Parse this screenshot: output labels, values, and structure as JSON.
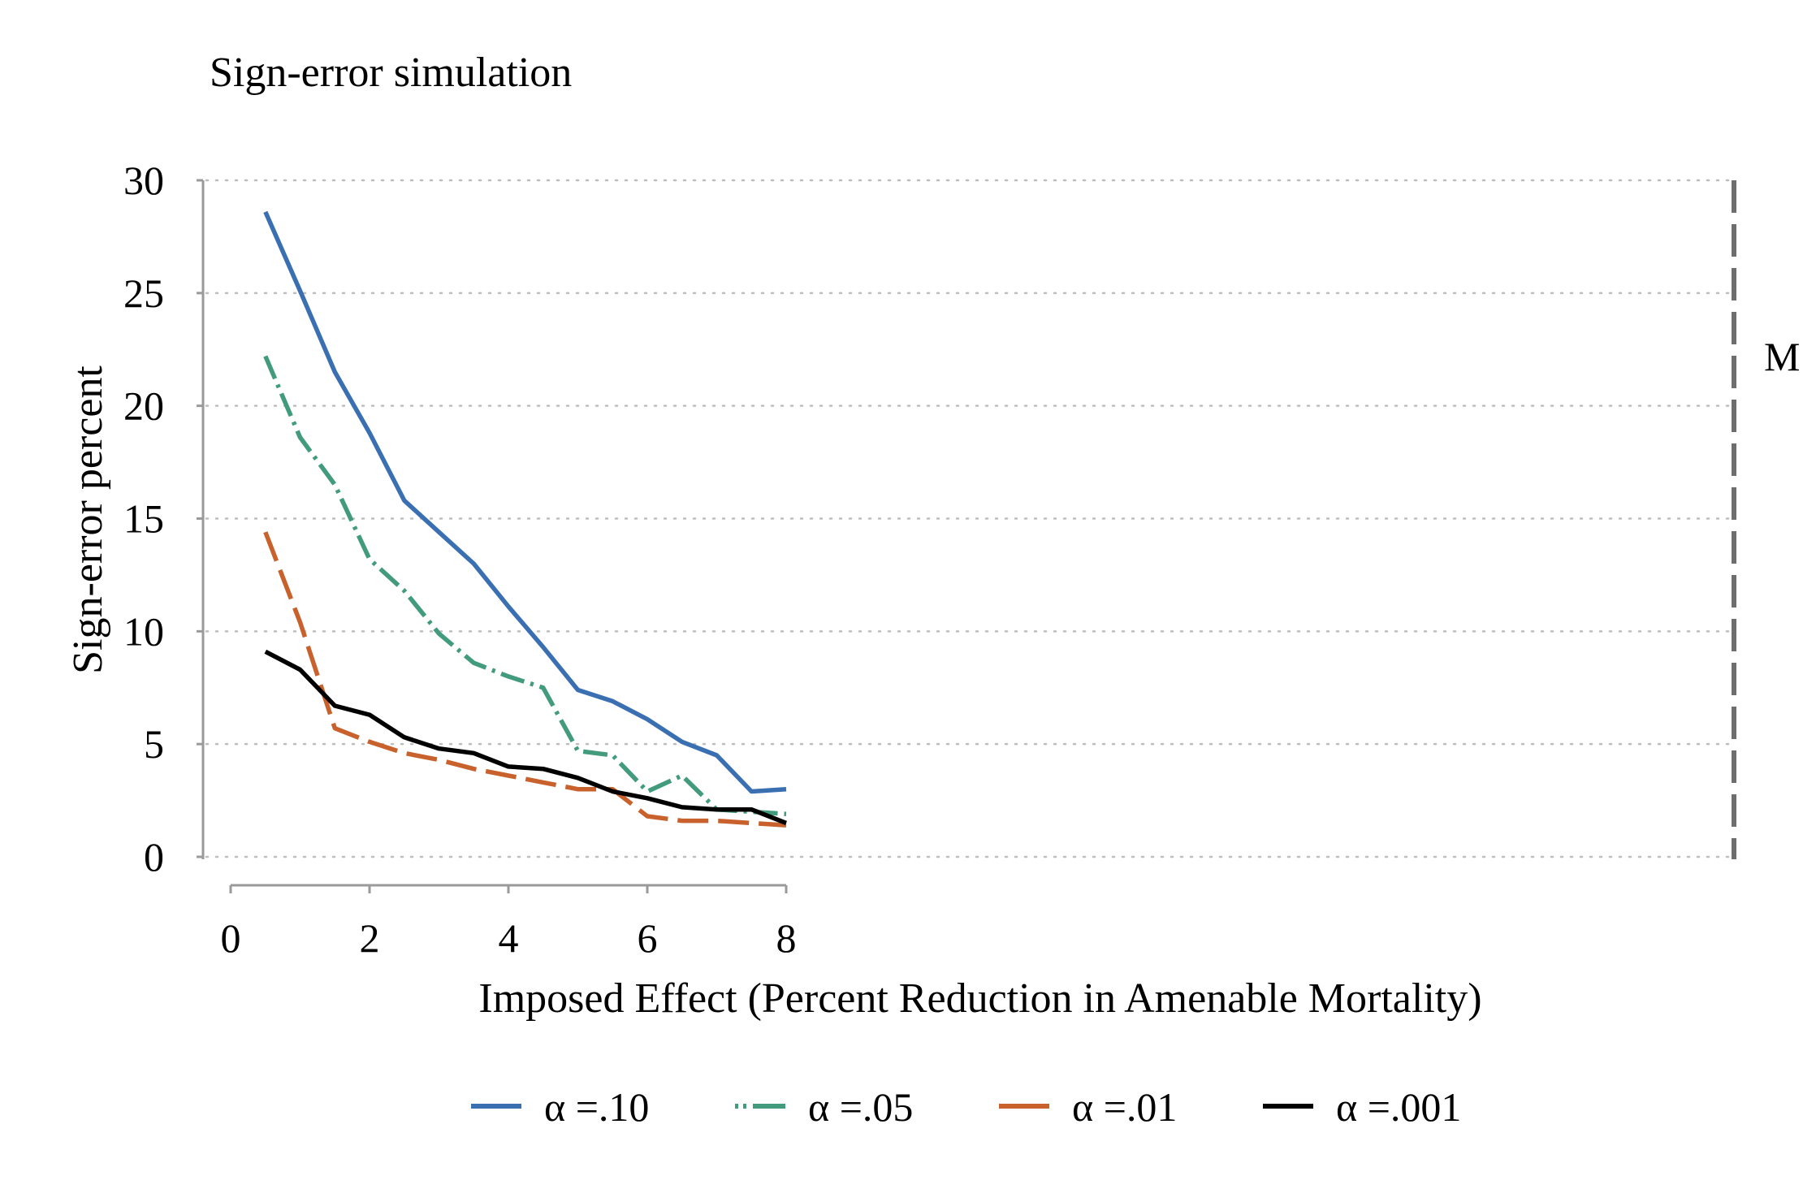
{
  "chart_data": {
    "type": "line",
    "title": "Sign-error simulation",
    "xlabel": "Imposed Effect (Percent Reduction in Amenable Mortality)",
    "ylabel": "Sign-error percent",
    "xlim": [
      0,
      8
    ],
    "ylim": [
      0,
      30
    ],
    "xticks": [
      "0",
      "2",
      "4",
      "6",
      "8"
    ],
    "yticks": [
      "0",
      "5",
      "10",
      "15",
      "20",
      "25",
      "30"
    ],
    "grid": true,
    "legend_position": "bottom",
    "x": [
      0.5,
      1,
      1.5,
      2,
      2.5,
      3,
      3.5,
      4,
      4.5,
      5,
      5.5,
      6,
      6.5,
      7,
      7.5,
      8
    ],
    "series": [
      {
        "name": "α =.10",
        "color": "#3a70b2",
        "dash": "solid",
        "values": [
          28.6,
          25.1,
          21.5,
          18.8,
          15.8,
          14.4,
          13.0,
          11.1,
          9.3,
          7.4,
          6.9,
          6.1,
          5.1,
          4.5,
          2.9,
          3.0
        ]
      },
      {
        "name": "α =.05",
        "color": "#419b7c",
        "dash": "dash-dot",
        "values": [
          22.2,
          18.6,
          16.5,
          13.2,
          11.8,
          9.9,
          8.6,
          8.0,
          7.5,
          4.7,
          4.5,
          2.9,
          3.6,
          2.1,
          2.0,
          1.9
        ]
      },
      {
        "name": "α =.01",
        "color": "#c9612c",
        "dash": "long-dash",
        "values": [
          14.4,
          10.4,
          5.7,
          5.1,
          4.6,
          4.3,
          3.9,
          3.6,
          3.3,
          3.0,
          3.0,
          1.8,
          1.6,
          1.6,
          1.5,
          1.4
        ]
      },
      {
        "name": "α =.001",
        "color": "#000000",
        "dash": "solid",
        "values": [
          9.1,
          8.3,
          6.7,
          6.3,
          5.3,
          4.8,
          4.6,
          4.0,
          3.9,
          3.5,
          2.9,
          2.6,
          2.2,
          2.1,
          2.1,
          1.5
        ]
      }
    ],
    "annotations": [
      {
        "type": "vertical-dashed-line",
        "color": "#6e6e6e",
        "label": "M"
      }
    ]
  }
}
